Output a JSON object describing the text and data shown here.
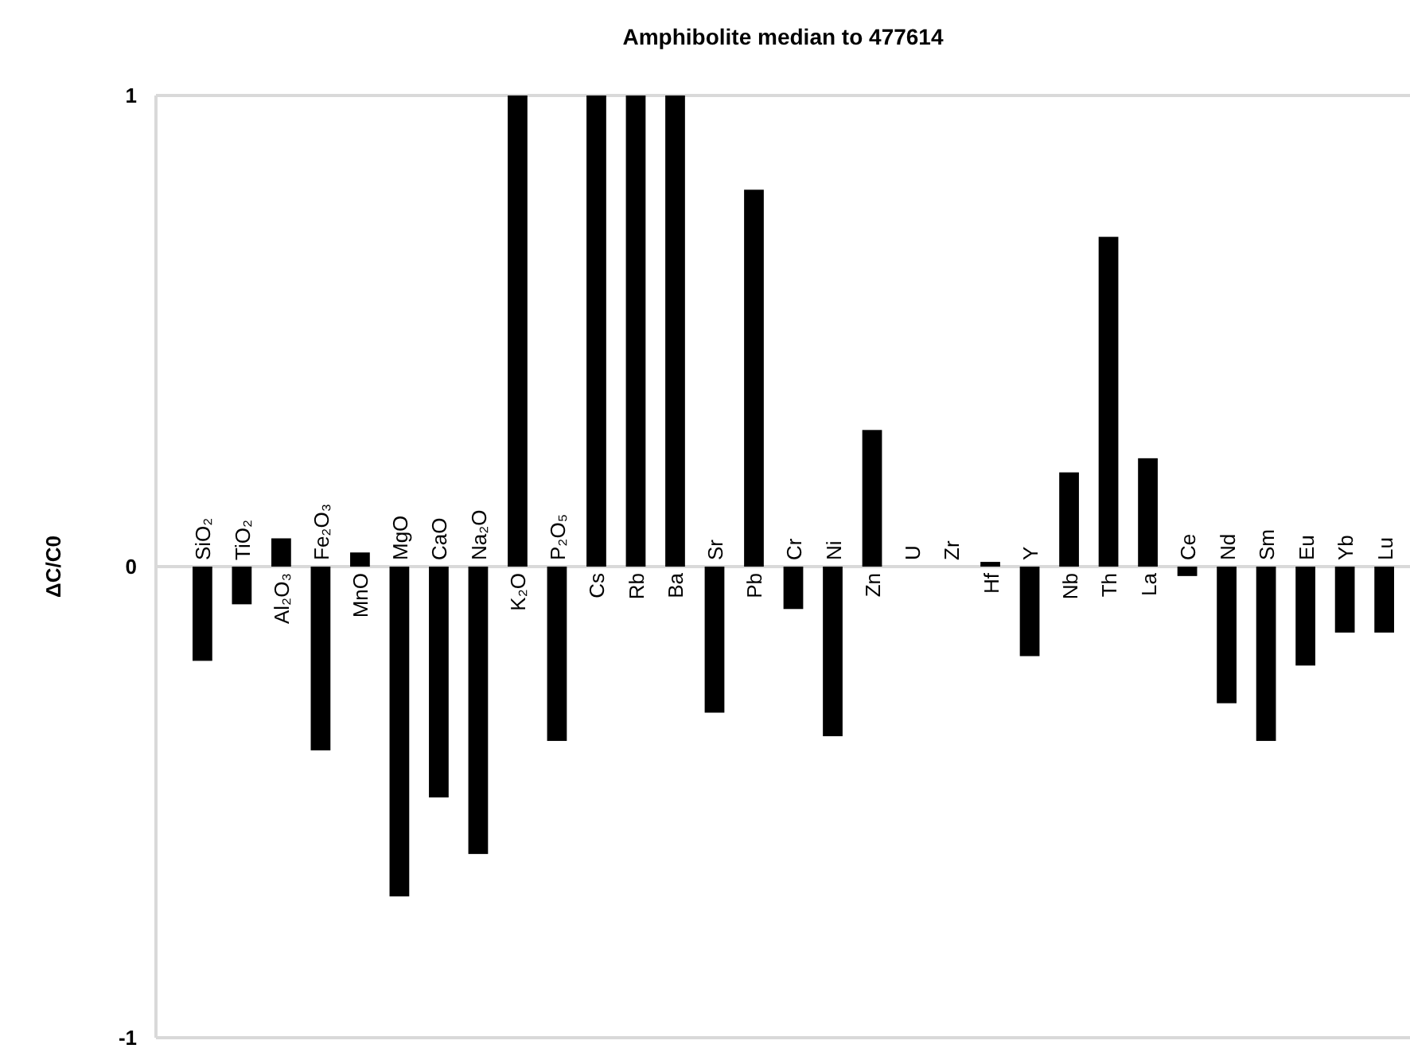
{
  "chart_data": {
    "type": "bar",
    "title": "Amphibolite median to 477614",
    "ylabel": "ΔC/C0",
    "categories": [
      "SiO₂",
      "TiO₂",
      "Al₂O₃",
      "Fe₂O₃",
      "MnO",
      "MgO",
      "CaO",
      "Na₂O",
      "K₂O",
      "P₂O₅",
      "Cs",
      "Rb",
      "Ba",
      "Sr",
      "Pb",
      "Cr",
      "Ni",
      "Zn",
      "U",
      "Zr",
      "Hf",
      "Y",
      "Nb",
      "Th",
      "La",
      "Ce",
      "Nd",
      "Sm",
      "Eu",
      "Yb",
      "Lu"
    ],
    "values": [
      -0.2,
      -0.08,
      0.06,
      -0.39,
      0.03,
      -0.7,
      -0.49,
      -0.61,
      1,
      -0.37,
      1,
      1,
      1,
      -0.31,
      0.8,
      -0.09,
      -0.36,
      0.29,
      0,
      0,
      0.01,
      -0.19,
      0.2,
      0.7,
      0.23,
      -0.02,
      -0.29,
      -0.37,
      -0.21,
      -0.14,
      -0.14
    ],
    "color": "#000000",
    "ylim": [
      -1,
      1
    ],
    "yticks": [
      -1,
      0,
      1
    ]
  }
}
